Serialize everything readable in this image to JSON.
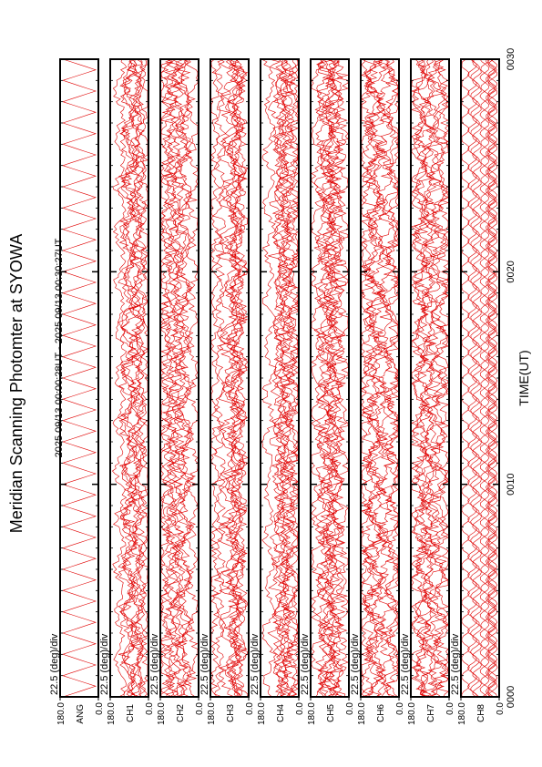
{
  "chart_data": {
    "type": "msp",
    "title": "Meridian Scanning Photomter at SYOWA",
    "subtitle": "2025 09/13 00:00:28UT - 2025 09/13 00:30:27UT",
    "x_label": "TIME(UT)",
    "xlim": [
      0,
      30
    ],
    "xticks": [
      {
        "value": 0,
        "label": "0000"
      },
      {
        "value": 10,
        "label": "0010"
      },
      {
        "value": 20,
        "label": "0020"
      },
      {
        "value": 30,
        "label": "0030"
      }
    ],
    "ylim": [
      0,
      180
    ],
    "yticks": [
      {
        "value": 0,
        "label": "0.0"
      },
      {
        "value": 180,
        "label": "180.0"
      }
    ],
    "scale_label": "22.5 (deg)/div",
    "color": "#e00000",
    "panels": [
      "ANG",
      "CH1",
      "CH2",
      "CH3",
      "CH4",
      "CH5",
      "CH6",
      "CH7",
      "CH8"
    ]
  }
}
